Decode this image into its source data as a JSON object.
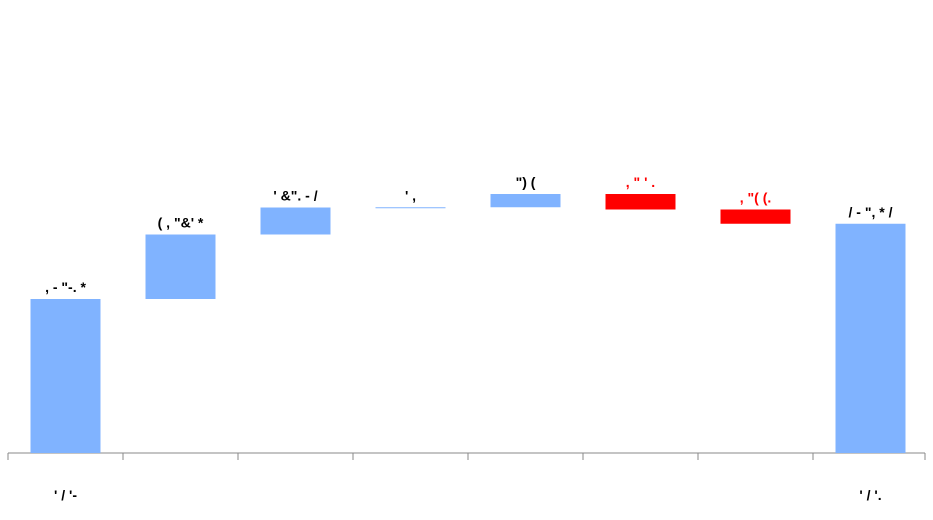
{
  "chart_data": {
    "type": "bar",
    "subtype": "waterfall",
    "title": "",
    "xlabel": "",
    "ylabel": "",
    "grid": false,
    "legend": "none",
    "colors": {
      "increase": "#80b3ff",
      "decrease": "#ff0000",
      "total": "#80b3ff",
      "axis": "#888888",
      "text_positive": "#000000",
      "text_negative": "#ff0000"
    },
    "ylim": [
      0,
      100
    ],
    "bars": [
      {
        "kind": "total",
        "label": ", - \"-. *",
        "start": 0,
        "end": 61.6,
        "category": "' / '-"
      },
      {
        "kind": "increase",
        "label": "( , \"&' *",
        "start": 61.6,
        "end": 87.4,
        "category": ""
      },
      {
        "kind": "increase",
        "label": "' &\". - /",
        "start": 87.4,
        "end": 98.2,
        "category": ""
      },
      {
        "kind": "increase",
        "label": "' ,",
        "start": 98.2,
        "end": 98.3,
        "category": ""
      },
      {
        "kind": "increase",
        "label": "\")  (",
        "start": 98.3,
        "end": 103.6,
        "category": ""
      },
      {
        "kind": "decrease",
        "label": ", \"  ' .",
        "start": 103.6,
        "end": 97.4,
        "category": ""
      },
      {
        "kind": "decrease",
        "label": ", \"( (.",
        "start": 97.4,
        "end": 91.7,
        "category": ""
      },
      {
        "kind": "total",
        "label": "/ - \", * /",
        "start": 0,
        "end": 91.7,
        "category": "' / '."
      }
    ]
  }
}
